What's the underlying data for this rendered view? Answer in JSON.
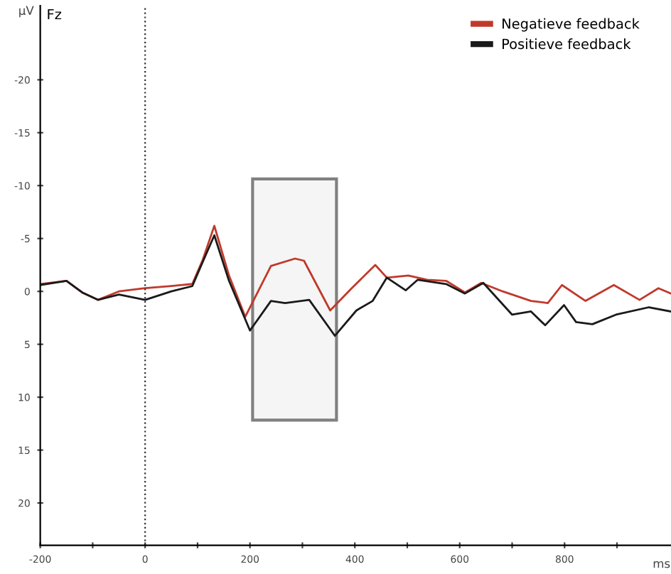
{
  "chart_data": {
    "type": "line",
    "title": "Fz",
    "xlabel": "ms",
    "ylabel": "µV",
    "series": [
      {
        "name": "Negatieve feedback",
        "color": "#c0392b",
        "x": [
          -200,
          -150,
          -120,
          -90,
          -50,
          0,
          50,
          90,
          110,
          132,
          160,
          191,
          240,
          286,
          303,
          353,
          394,
          439,
          461,
          502,
          538,
          574,
          610,
          641,
          682,
          736,
          768,
          795,
          840,
          894,
          943,
          979,
          1003
        ],
        "values": [
          -0.7,
          -1.0,
          0.1,
          0.8,
          0,
          -0.3,
          -0.5,
          -0.7,
          -3,
          -6.2,
          -1.5,
          2.4,
          -2.4,
          -3.1,
          -2.9,
          1.8,
          -0.3,
          -2.5,
          -1.3,
          -1.5,
          -1.1,
          -1.0,
          0.1,
          -0.8,
          0,
          0.9,
          1.1,
          -0.6,
          0.9,
          -0.6,
          0.8,
          -0.3,
          0.2
        ]
      },
      {
        "name": "Positieve feedback",
        "color": "#1a1a1a",
        "x": [
          -200,
          -150,
          -120,
          -90,
          -50,
          0,
          50,
          90,
          110,
          132,
          160,
          200,
          240,
          267,
          313,
          362,
          403,
          434,
          461,
          497,
          520,
          574,
          610,
          645,
          700,
          736,
          763,
          799,
          822,
          853,
          898,
          961,
          1003
        ],
        "values": [
          -0.6,
          -1.0,
          0.1,
          0.8,
          0.3,
          0.8,
          0,
          -0.5,
          -2.8,
          -5.3,
          -1,
          3.7,
          0.9,
          1.1,
          0.8,
          4.2,
          1.8,
          0.9,
          -1.3,
          -0.1,
          -1.1,
          -0.7,
          0.2,
          -0.8,
          2.2,
          1.9,
          3.2,
          1.3,
          2.9,
          3.1,
          2.2,
          1.5,
          1.9
        ]
      }
    ],
    "xlim": [
      -200,
      1003
    ],
    "ylim": [
      24,
      -27
    ],
    "xticks": [
      -200,
      {
        "value": -100,
        "label": null
      },
      0,
      {
        "value": 100,
        "label": null
      },
      200,
      {
        "value": 300,
        "label": null
      },
      400,
      {
        "value": 500,
        "label": null
      },
      600,
      {
        "value": 700,
        "label": null
      },
      800,
      {
        "value": 900,
        "label": null
      }
    ],
    "yticks": [
      -20,
      -15,
      -10,
      -5,
      0,
      5,
      10,
      15,
      20
    ],
    "ref_lines": [
      {
        "axis": "x",
        "value": 0,
        "color": "#333333",
        "line_style": "dotted"
      }
    ],
    "bands": [
      {
        "axis": "x",
        "from": 205,
        "to": 365,
        "color": "#808080"
      }
    ],
    "legend": "top right",
    "grid": false,
    "marker": "none",
    "line_style": "solid"
  }
}
